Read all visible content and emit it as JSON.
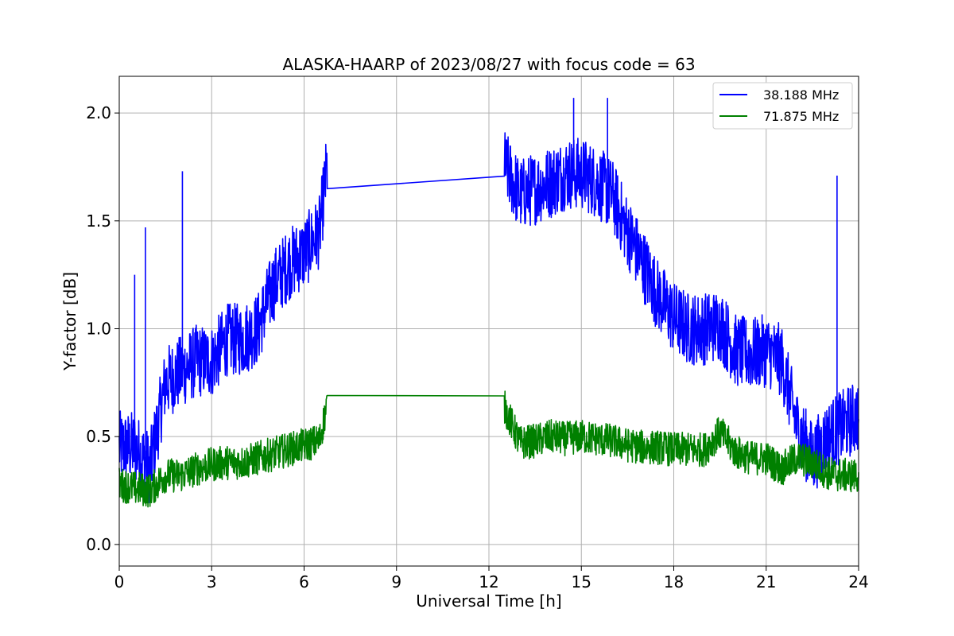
{
  "chart_data": {
    "type": "line",
    "title": "ALASKA-HAARP of 2023/08/27 with focus code = 63",
    "xlabel": "Universal Time [h]",
    "ylabel": "Y-factor [dB]",
    "xlim": [
      0,
      24
    ],
    "ylim": [
      -0.1,
      2.17
    ],
    "xticks": [
      0,
      3,
      6,
      9,
      12,
      15,
      18,
      21,
      24
    ],
    "yticks": [
      0.0,
      0.5,
      1.0,
      1.5,
      2.0
    ],
    "xtick_labels": [
      "0",
      "3",
      "6",
      "9",
      "12",
      "15",
      "18",
      "21",
      "24"
    ],
    "ytick_labels": [
      "0.0",
      "0.5",
      "1.0",
      "1.5",
      "2.0"
    ],
    "grid": true,
    "legend_position": "top-right",
    "gap": [
      6.75,
      12.5
    ],
    "series": [
      {
        "name": "38.188 MHz",
        "color": "#0000ff",
        "x": [
          0.0,
          0.5,
          1.0,
          1.5,
          2.0,
          2.5,
          3.0,
          3.5,
          4.0,
          4.5,
          5.0,
          5.5,
          6.0,
          6.5,
          6.75,
          12.5,
          13.0,
          13.5,
          14.0,
          14.5,
          15.0,
          15.5,
          16.0,
          16.5,
          17.0,
          17.5,
          18.0,
          18.5,
          19.0,
          19.5,
          20.0,
          20.5,
          21.0,
          21.5,
          22.0,
          22.5,
          23.0,
          23.5,
          24.0
        ],
        "y": [
          0.45,
          0.45,
          0.35,
          0.75,
          0.8,
          0.85,
          0.85,
          0.95,
          0.95,
          1.0,
          1.2,
          1.3,
          1.35,
          1.45,
          1.75,
          1.76,
          1.62,
          1.65,
          1.68,
          1.72,
          1.72,
          1.68,
          1.62,
          1.45,
          1.3,
          1.15,
          1.05,
          1.0,
          1.0,
          1.02,
          0.9,
          0.88,
          0.9,
          0.85,
          0.55,
          0.4,
          0.5,
          0.55,
          0.6
        ],
        "spikes": [
          [
            0.5,
            1.25
          ],
          [
            0.85,
            1.47
          ],
          [
            2.05,
            1.73
          ],
          [
            23.3,
            1.71
          ],
          [
            15.85,
            2.07
          ],
          [
            14.75,
            2.07
          ]
        ]
      },
      {
        "name": "71.875 MHz",
        "color": "#008000",
        "x": [
          0.0,
          0.5,
          1.0,
          1.5,
          2.0,
          2.5,
          3.0,
          3.5,
          4.0,
          4.5,
          5.0,
          5.5,
          6.0,
          6.5,
          6.75,
          12.5,
          13.0,
          13.5,
          14.0,
          14.5,
          15.0,
          15.5,
          16.0,
          16.5,
          17.0,
          17.5,
          18.0,
          18.5,
          19.0,
          19.5,
          20.0,
          20.5,
          21.0,
          21.5,
          22.0,
          22.5,
          23.0,
          23.5,
          24.0
        ],
        "y": [
          0.28,
          0.26,
          0.25,
          0.32,
          0.32,
          0.35,
          0.37,
          0.38,
          0.38,
          0.4,
          0.42,
          0.44,
          0.46,
          0.48,
          0.65,
          0.64,
          0.47,
          0.48,
          0.5,
          0.49,
          0.5,
          0.49,
          0.48,
          0.46,
          0.45,
          0.45,
          0.44,
          0.44,
          0.44,
          0.52,
          0.43,
          0.4,
          0.4,
          0.35,
          0.4,
          0.38,
          0.33,
          0.32,
          0.32
        ]
      }
    ]
  }
}
